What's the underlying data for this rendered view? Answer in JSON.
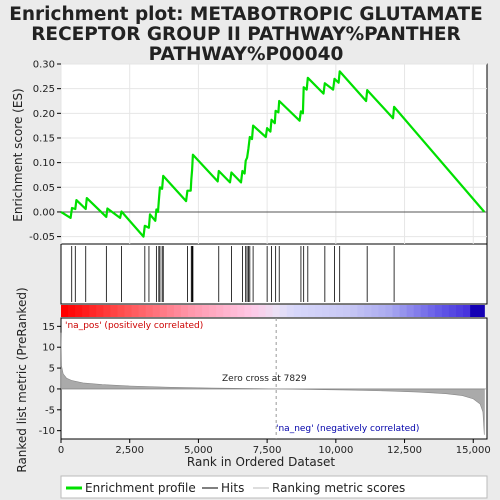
{
  "title": {
    "line1": "Enrichment plot: METABOTROPIC GLUTAMATE",
    "line2": "RECEPTOR GROUP II PATHWAY%PANTHER",
    "line3": "PATHWAY%P00040"
  },
  "colors": {
    "enrichment_line": "#00e000",
    "hits": "#000000",
    "pos_label": "#cc0000",
    "neg_label": "#0000aa",
    "metric_fill": "#aaaaaa",
    "zero_line": "#999999"
  },
  "chart_data": {
    "type": "line",
    "x_range": [
      0,
      15500
    ],
    "x_ticks": [
      "0",
      "2,500",
      "5,000",
      "7,500",
      "10,000",
      "12,500",
      "15,000"
    ],
    "x_tick_values": [
      0,
      2500,
      5000,
      7500,
      10000,
      12500,
      15000
    ],
    "xlabel": "Rank in Ordered Dataset",
    "top_panel": {
      "ylabel": "Enrichment score (ES)",
      "ylim": [
        -0.065,
        0.3
      ],
      "y_ticks": [
        "0.30",
        "0.25",
        "0.20",
        "0.15",
        "0.10",
        "0.05",
        "0.00",
        "-0.05"
      ],
      "y_tick_values": [
        0.3,
        0.25,
        0.2,
        0.15,
        0.1,
        0.05,
        0.0,
        -0.05
      ],
      "series_name": "Enrichment profile",
      "points": [
        [
          0,
          0.0
        ],
        [
          350,
          -0.012
        ],
        [
          400,
          0.008
        ],
        [
          520,
          0.006
        ],
        [
          560,
          0.024
        ],
        [
          900,
          0.006
        ],
        [
          940,
          0.028
        ],
        [
          1650,
          -0.01
        ],
        [
          1690,
          0.007
        ],
        [
          2150,
          -0.012
        ],
        [
          2200,
          0.001
        ],
        [
          3000,
          -0.05
        ],
        [
          3050,
          -0.028
        ],
        [
          3200,
          -0.032
        ],
        [
          3240,
          -0.005
        ],
        [
          3430,
          -0.018
        ],
        [
          3470,
          0.005
        ],
        [
          3530,
          0.0
        ],
        [
          3560,
          0.022
        ],
        [
          3600,
          0.05
        ],
        [
          3680,
          0.047
        ],
        [
          3720,
          0.073
        ],
        [
          4550,
          0.022
        ],
        [
          4600,
          0.043
        ],
        [
          4720,
          0.043
        ],
        [
          4740,
          0.065
        ],
        [
          4770,
          0.085
        ],
        [
          4800,
          0.116
        ],
        [
          5700,
          0.062
        ],
        [
          5740,
          0.083
        ],
        [
          6150,
          0.06
        ],
        [
          6200,
          0.08
        ],
        [
          6550,
          0.06
        ],
        [
          6600,
          0.083
        ],
        [
          6680,
          0.078
        ],
        [
          6720,
          0.104
        ],
        [
          6770,
          0.11
        ],
        [
          6820,
          0.128
        ],
        [
          6870,
          0.152
        ],
        [
          6950,
          0.148
        ],
        [
          6990,
          0.175
        ],
        [
          7450,
          0.152
        ],
        [
          7500,
          0.17
        ],
        [
          7620,
          0.163
        ],
        [
          7660,
          0.187
        ],
        [
          7780,
          0.18
        ],
        [
          7810,
          0.205
        ],
        [
          7910,
          0.202
        ],
        [
          7940,
          0.225
        ],
        [
          8680,
          0.185
        ],
        [
          8730,
          0.204
        ],
        [
          8800,
          0.2
        ],
        [
          8830,
          0.253
        ],
        [
          8940,
          0.248
        ],
        [
          8980,
          0.272
        ],
        [
          9550,
          0.24
        ],
        [
          9600,
          0.261
        ],
        [
          9900,
          0.248
        ],
        [
          9950,
          0.27
        ],
        [
          10100,
          0.262
        ],
        [
          10140,
          0.285
        ],
        [
          11100,
          0.225
        ],
        [
          11140,
          0.247
        ],
        [
          12080,
          0.19
        ],
        [
          12120,
          0.213
        ],
        [
          15400,
          0.0
        ]
      ]
    },
    "hits": [
      390,
      520,
      900,
      1650,
      2200,
      3050,
      3200,
      3470,
      3560,
      3600,
      3680,
      3720,
      4600,
      4740,
      4770,
      4800,
      5740,
      6200,
      6600,
      6720,
      6770,
      6820,
      6870,
      6990,
      7500,
      7660,
      7810,
      7940,
      8730,
      8830,
      8980,
      9600,
      9950,
      10140,
      11140,
      12120
    ],
    "bottom_panel": {
      "ylabel": "Ranked list metric (PreRanked)",
      "ylim": [
        -12,
        17
      ],
      "y_ticks": [
        "15",
        "10",
        "5",
        "0",
        "-5",
        "-10"
      ],
      "y_tick_values": [
        15,
        10,
        5,
        0,
        -5,
        -10
      ],
      "series_name": "Ranking metric scores",
      "zero_cross_rank": 7829,
      "zero_cross_text": "Zero cross at 7829",
      "pos_text": "'na_pos' (positively correlated)",
      "neg_text": "'na_neg' (negatively correlated)",
      "metric_curve": [
        [
          0,
          13.5
        ],
        [
          20,
          5.5
        ],
        [
          80,
          3.6
        ],
        [
          200,
          2.6
        ],
        [
          400,
          2.0
        ],
        [
          800,
          1.45
        ],
        [
          1500,
          1.05
        ],
        [
          2500,
          0.7
        ],
        [
          4000,
          0.38
        ],
        [
          5500,
          0.2
        ],
        [
          7000,
          0.07
        ],
        [
          7829,
          0.0
        ],
        [
          9000,
          -0.12
        ],
        [
          10500,
          -0.28
        ],
        [
          12000,
          -0.52
        ],
        [
          13000,
          -0.75
        ],
        [
          14000,
          -1.15
        ],
        [
          14600,
          -1.6
        ],
        [
          15000,
          -2.4
        ],
        [
          15250,
          -3.6
        ],
        [
          15350,
          -5.5
        ],
        [
          15400,
          -11.0
        ]
      ]
    },
    "legend": [
      "Enrichment profile",
      "Hits",
      "Ranking metric scores"
    ]
  }
}
